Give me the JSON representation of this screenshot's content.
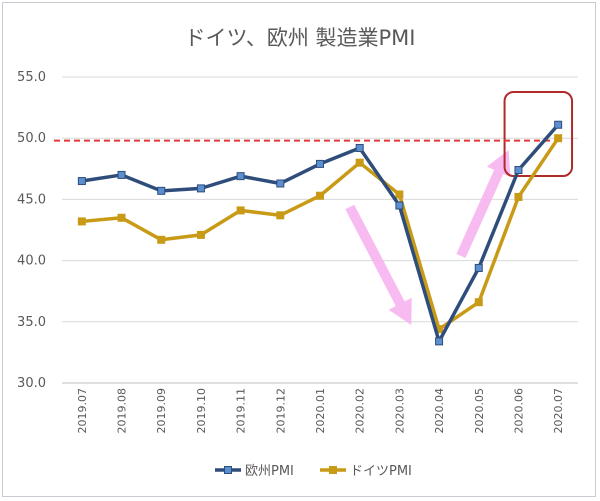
{
  "chart_data": {
    "type": "line",
    "title": "ドイツ、欧州 製造業PMI",
    "categories": [
      "2019.07",
      "2019.08",
      "2019.09",
      "2019.10",
      "2019.11",
      "2019.12",
      "2020.01",
      "2020.02",
      "2020.03",
      "2020.04",
      "2020.05",
      "2020.06",
      "2020.07"
    ],
    "series": [
      {
        "name": "欧州PMI",
        "color": "#2e4d7b",
        "marker_color": "#5b8fd0",
        "marker": "square",
        "values": [
          46.5,
          47.0,
          45.7,
          45.9,
          46.9,
          46.3,
          47.9,
          49.2,
          44.5,
          33.4,
          39.4,
          47.4,
          51.1
        ]
      },
      {
        "name": "ドイツPMI",
        "color": "#c89a16",
        "marker": "square",
        "values": [
          43.2,
          43.5,
          41.7,
          42.1,
          44.1,
          43.7,
          45.3,
          48.0,
          45.4,
          34.4,
          36.6,
          45.2,
          50.0
        ]
      }
    ],
    "ylim": [
      30,
      55
    ],
    "yticks": [
      "30.0",
      "35.0",
      "40.0",
      "45.0",
      "50.0",
      "55.0"
    ],
    "reference_line": {
      "value": 49.8,
      "color": "#e0373a",
      "style": "dashed"
    },
    "annotations": [
      {
        "kind": "arrow",
        "direction": "down",
        "color": "#f7b4ef"
      },
      {
        "kind": "arrow",
        "direction": "up",
        "color": "#f7b4ef"
      },
      {
        "kind": "highlight-box",
        "color": "#b02a2a"
      }
    ],
    "grid": true,
    "legend": "bottom",
    "xlabel": "",
    "ylabel": ""
  }
}
